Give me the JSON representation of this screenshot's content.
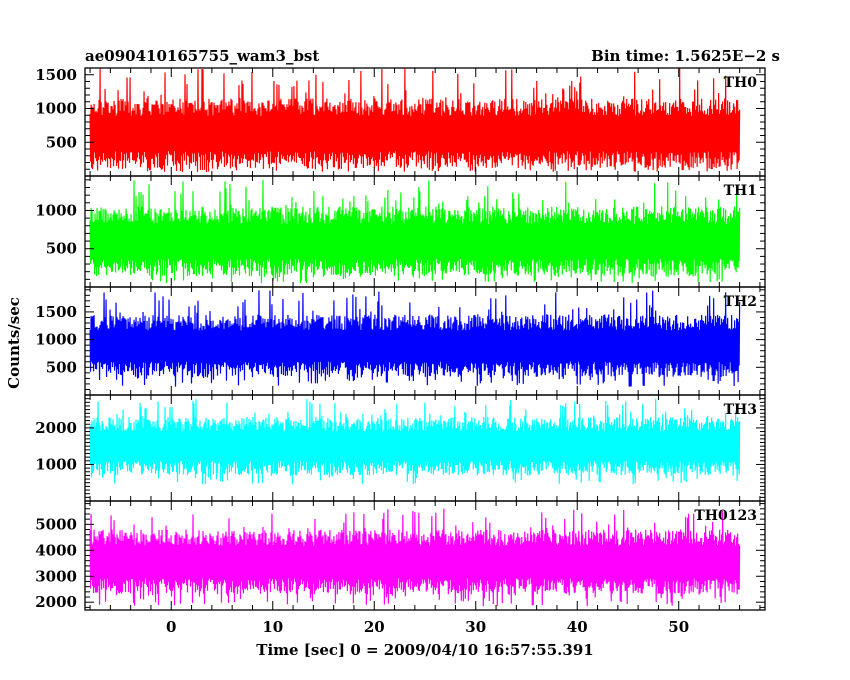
{
  "header": {
    "left": "ae090410165755_wam3_bst",
    "right": "Bin time: 1.5625E−2 s"
  },
  "chart_data": {
    "type": "line",
    "xlabel": "Time [sec] 0 = 2009/04/10 16:57:55.391",
    "ylabel": "Counts/sec",
    "xlim": [
      -8.5,
      58.5
    ],
    "data_x_range": [
      -8.0,
      56.0
    ],
    "x_ticks": [
      0,
      10,
      20,
      30,
      40,
      50
    ],
    "x_tick_labels": [
      "0",
      "10",
      "20",
      "30",
      "40",
      "50"
    ],
    "bin_time_s": 0.015625,
    "series": [
      {
        "name": "TH0",
        "color": "#ff0000",
        "ylim": [
          0,
          1600
        ],
        "y_ticks": [
          500,
          1000,
          1500
        ],
        "y_tick_labels": [
          "500",
          "1000",
          "1500"
        ],
        "typical_low": 110,
        "typical_high": 1150,
        "envelope_min": 60,
        "envelope_max": 1600
      },
      {
        "name": "TH1",
        "color": "#00ff00",
        "ylim": [
          0,
          1450
        ],
        "y_ticks": [
          500,
          1000
        ],
        "y_tick_labels": [
          "500",
          "1000"
        ],
        "typical_low": 140,
        "typical_high": 1050,
        "envelope_min": 50,
        "envelope_max": 1400
      },
      {
        "name": "TH2",
        "color": "#0000ff",
        "ylim": [
          0,
          1950
        ],
        "y_ticks": [
          500,
          1000,
          1500
        ],
        "y_tick_labels": [
          "500",
          "1000",
          "1500"
        ],
        "typical_low": 320,
        "typical_high": 1450,
        "envelope_min": 150,
        "envelope_max": 1900
      },
      {
        "name": "TH3",
        "color": "#00ffff",
        "ylim": [
          0,
          2900
        ],
        "y_ticks": [
          1000,
          2000
        ],
        "y_tick_labels": [
          "1000",
          "2000"
        ],
        "typical_low": 700,
        "typical_high": 2300,
        "envelope_min": 450,
        "envelope_max": 2800
      },
      {
        "name": "TH0123",
        "color": "#ff00ff",
        "ylim": [
          1700,
          5900
        ],
        "y_ticks": [
          2000,
          3000,
          4000,
          5000
        ],
        "y_tick_labels": [
          "2000",
          "3000",
          "4000",
          "5000"
        ],
        "typical_low": 2300,
        "typical_high": 4800,
        "envelope_min": 1850,
        "envelope_max": 5600
      }
    ]
  }
}
